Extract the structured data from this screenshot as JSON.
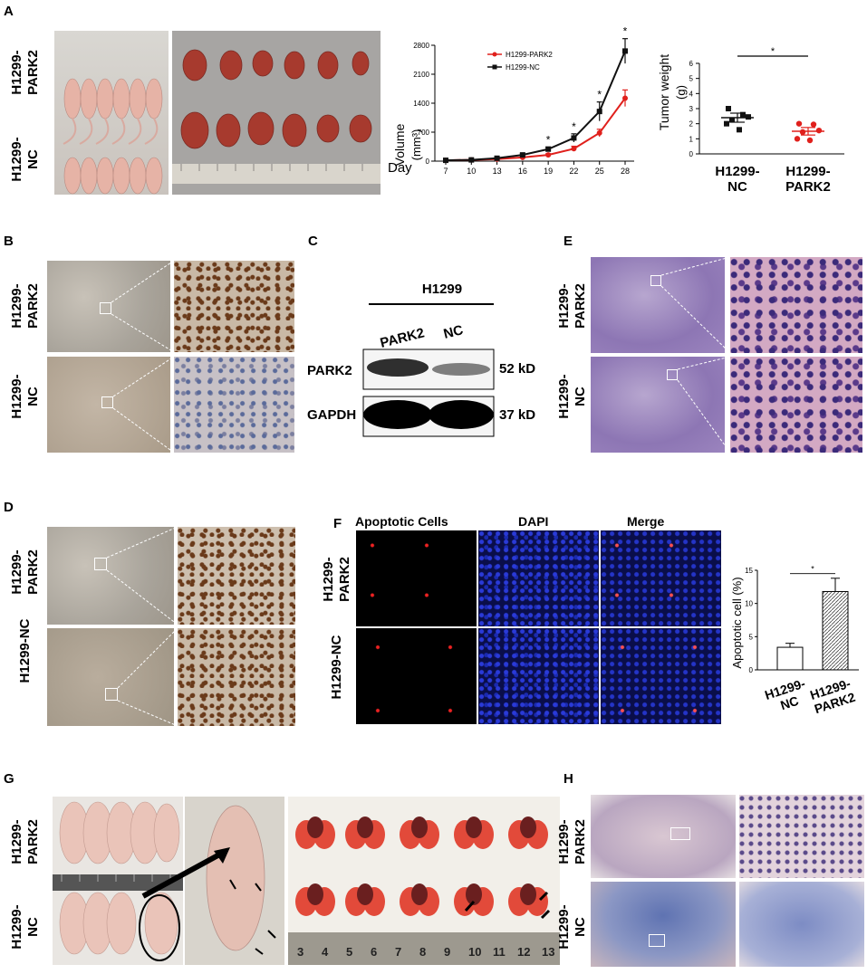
{
  "panel_letters": {
    "A": "A",
    "B": "B",
    "C": "C",
    "D": "D",
    "E": "E",
    "F": "F",
    "G": "G",
    "H": "H"
  },
  "row_labels": {
    "park2": "H1299-\nPARK2",
    "nc": "H1299-\nNC",
    "nc_single": "H1299-NC"
  },
  "panel_a_volume": {
    "legend": [
      "H1299-PARK2",
      "H1299-NC"
    ],
    "ylabel_line1": "Volume",
    "ylabel_line2": "(mm³)",
    "xlabel": "Day",
    "colors": {
      "park2": "#e0201c",
      "nc": "#111111"
    }
  },
  "panel_a_weight": {
    "ylabel": "Tumor weight",
    "yunit": "(g)",
    "categories": [
      "H1299-\nNC",
      "H1299-\nPARK2"
    ],
    "significance": "*"
  },
  "panel_c": {
    "cell_line": "H1299",
    "lanes": [
      "PARK2",
      "NC"
    ],
    "rows": [
      "PARK2",
      "GAPDH"
    ],
    "sizes": [
      "52 kD",
      "37 kD"
    ]
  },
  "panel_f": {
    "columns": [
      "Apoptotic Cells",
      "DAPI",
      "Merge"
    ],
    "bar": {
      "ylabel": "Apoptotic cell (%)",
      "categories": [
        "H1299-\nNC",
        "H1299-\nPARK2"
      ],
      "significance": "*"
    }
  },
  "panel_g": {
    "ruler_numbers": [
      "3",
      "4",
      "5",
      "6",
      "7",
      "8",
      "9",
      "10",
      "11",
      "12",
      "13"
    ]
  },
  "chart_data": [
    {
      "type": "line",
      "x": [
        7,
        10,
        13,
        16,
        19,
        22,
        25,
        28
      ],
      "series": [
        {
          "name": "H1299-PARK2",
          "values": [
            20,
            30,
            50,
            90,
            150,
            300,
            680,
            1520
          ],
          "errors": [
            10,
            10,
            15,
            20,
            30,
            60,
            90,
            200
          ]
        },
        {
          "name": "H1299-NC",
          "values": [
            20,
            30,
            70,
            150,
            290,
            560,
            1200,
            2660
          ],
          "errors": [
            10,
            10,
            20,
            30,
            50,
            100,
            230,
            300
          ]
        }
      ],
      "xlabel": "Day",
      "ylabel": "Volume (mm³)",
      "ylim": [
        0,
        2800
      ],
      "yticks": [
        0,
        700,
        1400,
        2100,
        2800
      ],
      "significance_days": [
        19,
        22,
        25,
        28
      ],
      "significance": "*",
      "legend": "top-left"
    },
    {
      "type": "scatter",
      "categories": [
        "H1299-NC",
        "H1299-PARK2"
      ],
      "series": [
        {
          "name": "H1299-NC",
          "values": [
            3.0,
            2.6,
            2.45,
            2.25,
            2.0,
            1.6
          ],
          "mean": 2.4,
          "sem": 0.3
        },
        {
          "name": "H1299-PARK2",
          "values": [
            2.0,
            1.95,
            1.55,
            1.45,
            1.0,
            0.9
          ],
          "mean": 1.5,
          "sem": 0.25
        }
      ],
      "ylabel": "Tumor weight (g)",
      "ylim": [
        0,
        6
      ],
      "yticks": [
        0,
        1,
        2,
        3,
        4,
        5,
        6
      ],
      "significance": "*"
    },
    {
      "type": "bar",
      "categories": [
        "H1299-NC",
        "H1299-PARK2"
      ],
      "values": [
        3.4,
        11.8
      ],
      "errors": [
        0.6,
        2.0
      ],
      "ylabel": "Apoptotic cell (%)",
      "ylim": [
        0,
        15
      ],
      "yticks": [
        0,
        5,
        10,
        15
      ],
      "significance": "*"
    }
  ]
}
